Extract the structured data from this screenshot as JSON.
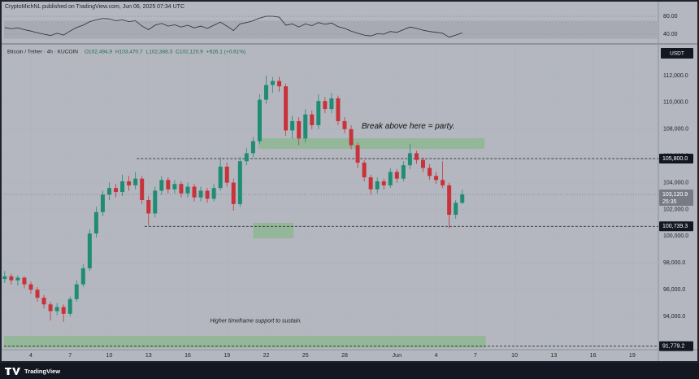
{
  "header": "CryptoMichNL published on TradingView.com, Jun 06, 2025 07:34 UTC",
  "footer": "TradingView",
  "chart_data": {
    "type": "candlestick",
    "title": "Bitcoin / Tether · 4h · KUCOIN",
    "legend_items": [
      "O102,494.9",
      "H103,470.7",
      "L102,388.3",
      "C103,120.9",
      "+626.1 (+0.61%)"
    ],
    "currency": "USDT",
    "countdown": "25:35",
    "up_color": "#1f8c74",
    "down_color": "#c8323a",
    "x": [
      -2,
      -1.5,
      -1,
      -0.5,
      0,
      0.5,
      1,
      1.5,
      2,
      2.5,
      3,
      3.5,
      4,
      4.5,
      5,
      5.5,
      6,
      6.5,
      7,
      7.5,
      8,
      8.5,
      9,
      9.5,
      10,
      10.5,
      11,
      11.5,
      12,
      12.5,
      13,
      13.5,
      14,
      14.5,
      15,
      15.5,
      16,
      16.5,
      17,
      17.5,
      18,
      18.5,
      19,
      19.5,
      20,
      20.5,
      21,
      21.5,
      22,
      22.5,
      23,
      23.5,
      24,
      24.5,
      25,
      25.5,
      26,
      26.5,
      27,
      27.5,
      28,
      28.5,
      29,
      29.5,
      30,
      30.5,
      31,
      31.5,
      32,
      32.5,
      33
    ],
    "ohlc": [
      [
        96800,
        97400,
        96500,
        97000
      ],
      [
        97000,
        97200,
        96400,
        96700
      ],
      [
        96700,
        97100,
        96300,
        96900
      ],
      [
        96900,
        97000,
        96100,
        96400
      ],
      [
        96400,
        96600,
        95700,
        96000
      ],
      [
        96000,
        96200,
        95100,
        95400
      ],
      [
        95400,
        95600,
        94600,
        94900
      ],
      [
        94900,
        95100,
        93700,
        94400
      ],
      [
        94400,
        95000,
        94100,
        94700
      ],
      [
        94700,
        94900,
        93600,
        94200
      ],
      [
        94200,
        95500,
        94000,
        95300
      ],
      [
        95300,
        96700,
        95100,
        96400
      ],
      [
        96400,
        97900,
        96200,
        97600
      ],
      [
        97600,
        100500,
        97400,
        100200
      ],
      [
        100200,
        102200,
        99900,
        101800
      ],
      [
        101800,
        103400,
        101500,
        103100
      ],
      [
        103100,
        104000,
        102700,
        103600
      ],
      [
        103600,
        103900,
        102900,
        103300
      ],
      [
        103300,
        104600,
        103000,
        104100
      ],
      [
        104100,
        104500,
        103400,
        103800
      ],
      [
        103800,
        104800,
        103500,
        104300
      ],
      [
        104300,
        104500,
        102400,
        102700
      ],
      [
        102700,
        103000,
        100800,
        101700
      ],
      [
        101700,
        103700,
        101400,
        103400
      ],
      [
        103400,
        104500,
        103100,
        104200
      ],
      [
        104200,
        104400,
        103200,
        103500
      ],
      [
        103500,
        104200,
        103200,
        103900
      ],
      [
        103900,
        104100,
        102900,
        103200
      ],
      [
        103200,
        104000,
        102900,
        103700
      ],
      [
        103700,
        103900,
        102600,
        102900
      ],
      [
        102900,
        103700,
        102600,
        103400
      ],
      [
        103400,
        103600,
        102500,
        102800
      ],
      [
        102800,
        103900,
        102600,
        103600
      ],
      [
        103600,
        105900,
        103400,
        105200
      ],
      [
        105200,
        105500,
        103700,
        104000
      ],
      [
        104000,
        104300,
        101900,
        102400
      ],
      [
        102400,
        105900,
        102200,
        105600
      ],
      [
        105600,
        106600,
        105300,
        106200
      ],
      [
        106200,
        107400,
        105900,
        107100
      ],
      [
        107100,
        110600,
        106900,
        110200
      ],
      [
        110200,
        112000,
        109900,
        111300
      ],
      [
        111300,
        111900,
        110700,
        111600
      ],
      [
        111600,
        111900,
        110800,
        111200
      ],
      [
        111200,
        111400,
        107500,
        107900
      ],
      [
        107900,
        109000,
        107300,
        108600
      ],
      [
        108600,
        108900,
        106800,
        107300
      ],
      [
        107300,
        109500,
        107000,
        109100
      ],
      [
        109100,
        109400,
        108000,
        108300
      ],
      [
        108300,
        110600,
        108000,
        110100
      ],
      [
        110100,
        110400,
        109200,
        109500
      ],
      [
        109500,
        110700,
        109200,
        110300
      ],
      [
        110300,
        110500,
        108300,
        108600
      ],
      [
        108600,
        108900,
        107700,
        108000
      ],
      [
        108000,
        108300,
        106500,
        106800
      ],
      [
        106800,
        107000,
        105100,
        105500
      ],
      [
        105500,
        105700,
        104100,
        104400
      ],
      [
        104400,
        104600,
        103100,
        103500
      ],
      [
        103500,
        104400,
        103200,
        104100
      ],
      [
        104100,
        104300,
        103500,
        103800
      ],
      [
        103800,
        105100,
        103600,
        104800
      ],
      [
        104800,
        105000,
        104000,
        104300
      ],
      [
        104300,
        105600,
        104100,
        105300
      ],
      [
        105300,
        106900,
        105000,
        106200
      ],
      [
        106200,
        106400,
        105400,
        105700
      ],
      [
        105700,
        105900,
        104800,
        105100
      ],
      [
        105100,
        105400,
        104200,
        104500
      ],
      [
        104500,
        104800,
        103900,
        104200
      ],
      [
        104200,
        105600,
        103600,
        103800
      ],
      [
        103800,
        104000,
        100600,
        101600
      ],
      [
        101600,
        102700,
        101300,
        102494.9
      ],
      [
        102494.9,
        103470.7,
        102388.3,
        103120.9
      ]
    ],
    "xlim": [
      -2.05,
      48
    ],
    "xticks": [
      {
        "value": 0,
        "label": "4"
      },
      {
        "value": 3,
        "label": "7"
      },
      {
        "value": 6,
        "label": "10"
      },
      {
        "value": 9,
        "label": "13"
      },
      {
        "value": 12,
        "label": "16"
      },
      {
        "value": 15,
        "label": "19"
      },
      {
        "value": 18,
        "label": "22"
      },
      {
        "value": 21,
        "label": "25"
      },
      {
        "value": 24,
        "label": "28"
      },
      {
        "value": 28,
        "label": "Jun"
      },
      {
        "value": 31,
        "label": "4"
      },
      {
        "value": 34,
        "label": "7"
      },
      {
        "value": 37,
        "label": "10"
      },
      {
        "value": 40,
        "label": "13"
      },
      {
        "value": 43,
        "label": "16"
      },
      {
        "value": 46,
        "label": "19"
      }
    ],
    "ylim": [
      91514,
      114188
    ],
    "yticks": [
      {
        "value": 94000,
        "label": "94,000.0"
      },
      {
        "value": 96000,
        "label": "96,000.0"
      },
      {
        "value": 98000,
        "label": "98,000.0"
      },
      {
        "value": 100000,
        "label": "100,000.0"
      },
      {
        "value": 102000,
        "label": "102,000.0"
      },
      {
        "value": 104000,
        "label": "104,000.0"
      },
      {
        "value": 106000,
        "label": "106,000.0"
      },
      {
        "value": 108000,
        "label": "108,000.0"
      },
      {
        "value": 110000,
        "label": "110,000.0"
      },
      {
        "value": 112000,
        "label": "112,000.0"
      }
    ],
    "price_labels": [
      {
        "value": 105800,
        "label": "105,800.0"
      },
      {
        "value": 103120.9,
        "label": "103,120.9"
      },
      {
        "value": 100739.3,
        "label": "100,739.3"
      },
      {
        "value": 91779.2,
        "label": "91,779.2"
      }
    ],
    "levels": [
      {
        "value": 105800,
        "x": 8.1
      },
      {
        "value": 100739.3,
        "x": 8.7
      },
      {
        "value": 91779.2,
        "x": -2.05
      }
    ],
    "zones": [
      {
        "x": [
          17.4,
          34.7
        ],
        "y": [
          106530,
          107320
        ]
      },
      {
        "x": [
          17.0,
          20.1
        ],
        "y": [
          99840,
          101000
        ]
      },
      {
        "x": [
          -2.05,
          34.8
        ],
        "y": [
          91636,
          92550
        ]
      }
    ],
    "annotations": [
      {
        "text": "Break above here = party.",
        "x": 25.3,
        "y": 108200
      },
      {
        "text": "Higher timeframe support to sustain.",
        "x": 13.7,
        "y": 93650
      }
    ],
    "rsi": {
      "values": [
        55,
        52,
        54,
        50,
        47,
        43,
        40,
        37,
        42,
        38,
        47,
        55,
        60,
        68,
        72,
        75,
        74,
        70,
        72,
        68,
        70,
        58,
        50,
        60,
        64,
        58,
        61,
        56,
        60,
        54,
        58,
        53,
        60,
        67,
        58,
        48,
        63,
        66,
        70,
        76,
        80,
        80,
        78,
        60,
        63,
        56,
        63,
        59,
        66,
        62,
        65,
        57,
        53,
        47,
        42,
        38,
        36,
        41,
        40,
        46,
        44,
        50,
        56,
        53,
        49,
        46,
        44,
        42,
        33,
        38,
        43
      ],
      "ylim": [
        21.8,
        91
      ],
      "band": [
        30,
        70
      ],
      "yticks": [
        {
          "value": 80,
          "label": "80.00"
        },
        {
          "value": 40,
          "label": "40.00"
        }
      ]
    }
  }
}
